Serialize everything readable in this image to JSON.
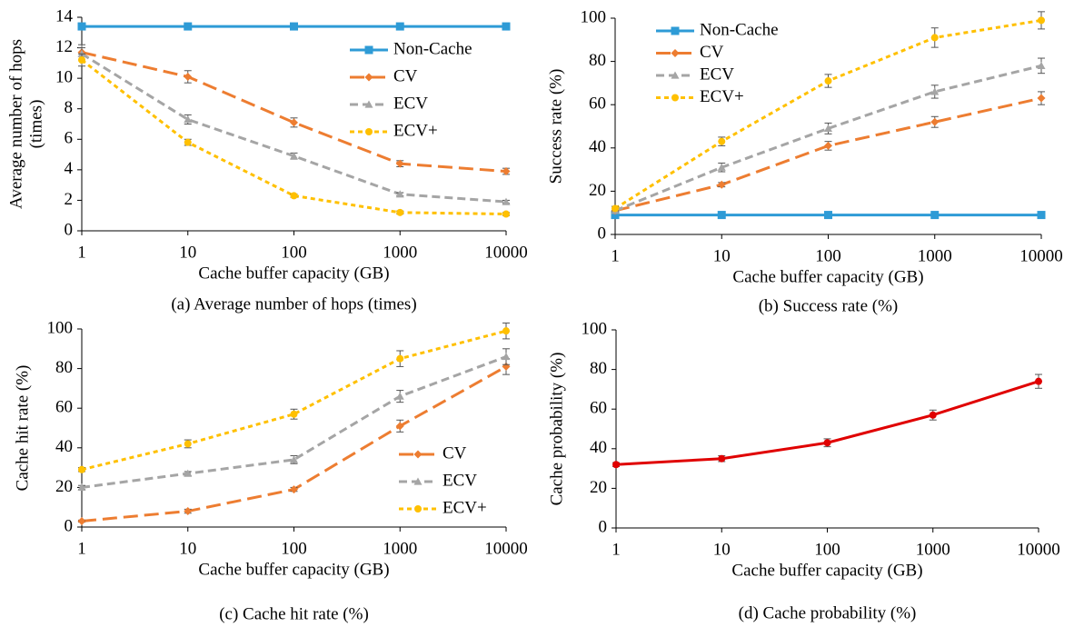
{
  "chart_data": [
    {
      "type": "line",
      "caption": "(a) Average number of hops (times)",
      "x_label": "Cache buffer capacity (GB)",
      "y_label": [
        "Average number of hops",
        "(times)"
      ],
      "log_x": true,
      "x": [
        1,
        10,
        100,
        1000,
        10000
      ],
      "xlim": [
        1,
        10000
      ],
      "xticks": [
        1,
        10,
        100,
        1000,
        10000
      ],
      "ylim": [
        0,
        14
      ],
      "yticks": [
        0,
        2,
        4,
        6,
        8,
        10,
        12,
        14
      ],
      "legend": "upper right",
      "series": [
        {
          "name": "Non-Cache",
          "color": "#2e9bd6",
          "marker": "square",
          "dash": "solid",
          "values": [
            13.4,
            13.4,
            13.4,
            13.4,
            13.4
          ]
        },
        {
          "name": "CV",
          "color": "#ed7d31",
          "marker": "diamond",
          "dash": "long-dash",
          "values": [
            11.7,
            10.1,
            7.1,
            4.4,
            3.9
          ],
          "errors": [
            0.5,
            0.4,
            0.3,
            0.2,
            0.2
          ]
        },
        {
          "name": "ECV",
          "color": "#a5a5a5",
          "marker": "triangle",
          "dash": "dash",
          "values": [
            11.6,
            7.3,
            4.9,
            2.4,
            1.9
          ],
          "errors": [
            0.4,
            0.3,
            0.2,
            0.1,
            0.1
          ]
        },
        {
          "name": "ECV+",
          "color": "#ffc000",
          "marker": "circle",
          "dash": "short-dash",
          "values": [
            11.2,
            5.8,
            2.3,
            1.2,
            1.1
          ],
          "errors": [
            0.4,
            0.2,
            0.1,
            0.1,
            0.1
          ]
        }
      ]
    },
    {
      "type": "line",
      "caption": "(b) Success rate (%)",
      "x_label": "Cache buffer capacity (GB)",
      "y_label": [
        "Success rate (%)"
      ],
      "log_x": true,
      "x": [
        1,
        10,
        100,
        1000,
        10000
      ],
      "xlim": [
        1,
        10000
      ],
      "xticks": [
        1,
        10,
        100,
        1000,
        10000
      ],
      "ylim": [
        0,
        100
      ],
      "yticks": [
        0,
        20,
        40,
        60,
        80,
        100
      ],
      "legend": "upper left",
      "series": [
        {
          "name": "Non-Cache",
          "color": "#2e9bd6",
          "marker": "square",
          "dash": "solid",
          "values": [
            9,
            9,
            9,
            9,
            9
          ]
        },
        {
          "name": "CV",
          "color": "#ed7d31",
          "marker": "diamond",
          "dash": "long-dash",
          "values": [
            11,
            23,
            41,
            52,
            63
          ],
          "errors": [
            1,
            1,
            2,
            2.5,
            3
          ]
        },
        {
          "name": "ECV",
          "color": "#a5a5a5",
          "marker": "triangle",
          "dash": "dash",
          "values": [
            11,
            31,
            49,
            66,
            78
          ],
          "errors": [
            1,
            2,
            2.5,
            3,
            3.5
          ]
        },
        {
          "name": "ECV+",
          "color": "#ffc000",
          "marker": "circle",
          "dash": "short-dash",
          "values": [
            12,
            43,
            71,
            91,
            99
          ],
          "errors": [
            1,
            2,
            3,
            4.5,
            4
          ]
        }
      ]
    },
    {
      "type": "line",
      "caption": "(c) Cache hit rate (%)",
      "x_label": "Cache buffer capacity (GB)",
      "y_label": [
        "Cache hit rate (%)"
      ],
      "log_x": true,
      "x": [
        1,
        10,
        100,
        1000,
        10000
      ],
      "xlim": [
        1,
        10000
      ],
      "xticks": [
        1,
        10,
        100,
        1000,
        10000
      ],
      "ylim": [
        0,
        100
      ],
      "yticks": [
        0,
        20,
        40,
        60,
        80,
        100
      ],
      "legend": "lower right",
      "series": [
        {
          "name": "CV",
          "color": "#ed7d31",
          "marker": "diamond",
          "dash": "long-dash",
          "values": [
            3,
            8,
            19,
            51,
            81
          ],
          "errors": [
            0.5,
            1,
            1,
            3,
            4
          ]
        },
        {
          "name": "ECV",
          "color": "#a5a5a5",
          "marker": "triangle",
          "dash": "dash",
          "values": [
            20,
            27,
            34,
            66,
            86
          ],
          "errors": [
            1,
            1,
            2,
            3,
            4
          ]
        },
        {
          "name": "ECV+",
          "color": "#ffc000",
          "marker": "circle",
          "dash": "short-dash",
          "values": [
            29,
            42,
            57,
            85,
            99
          ],
          "errors": [
            1,
            2,
            2.5,
            4,
            4
          ]
        }
      ]
    },
    {
      "type": "line",
      "caption": "(d) Cache probability (%)",
      "x_label": "Cache buffer capacity (GB)",
      "y_label": [
        "Cache probability (%)"
      ],
      "log_x": true,
      "x": [
        1,
        10,
        100,
        1000,
        10000
      ],
      "xlim": [
        1,
        10000
      ],
      "xticks": [
        1,
        10,
        100,
        1000,
        10000
      ],
      "ylim": [
        0,
        100
      ],
      "yticks": [
        0,
        20,
        40,
        60,
        80,
        100
      ],
      "series": [
        {
          "color": "#e00000",
          "marker": "circle",
          "dash": "solid",
          "values": [
            32,
            35,
            43,
            57,
            74
          ],
          "errors": [
            1,
            1.5,
            2,
            2.5,
            3.5
          ]
        }
      ]
    }
  ]
}
